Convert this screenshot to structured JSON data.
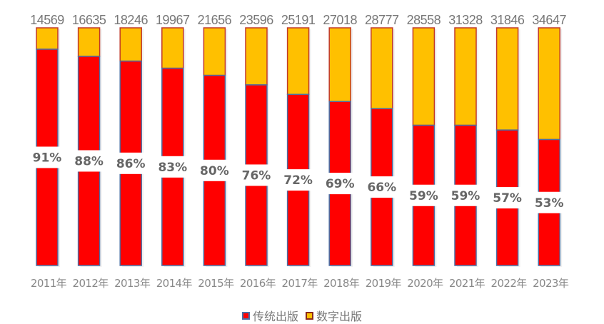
{
  "chart_data": {
    "type": "bar",
    "stacked": true,
    "normalized": true,
    "categories": [
      "2011年",
      "2012年",
      "2013年",
      "2014年",
      "2015年",
      "2016年",
      "2017年",
      "2018年",
      "2019年",
      "2020年",
      "2021年",
      "2022年",
      "2023年"
    ],
    "totals": [
      14569,
      16635,
      18246,
      19967,
      21656,
      23596,
      25191,
      27018,
      28777,
      28558,
      31328,
      31846,
      34647
    ],
    "series": [
      {
        "name": "传统出版",
        "color": "#FF0000",
        "border": "#4A6FA5",
        "values_percent": [
          91,
          88,
          86,
          83,
          80,
          76,
          72,
          69,
          66,
          59,
          59,
          57,
          53
        ]
      },
      {
        "name": "数字出版",
        "color": "#FFC000",
        "border": "#C0392B",
        "values_percent": [
          9,
          12,
          14,
          17,
          20,
          24,
          28,
          31,
          34,
          41,
          41,
          43,
          47
        ]
      }
    ],
    "percent_labels": [
      "91%",
      "88%",
      "86%",
      "83%",
      "80%",
      "76%",
      "72%",
      "69%",
      "66%",
      "59%",
      "59%",
      "57%",
      "53%"
    ],
    "ylim": [
      0,
      100
    ],
    "grid": false,
    "legend_position": "bottom"
  }
}
